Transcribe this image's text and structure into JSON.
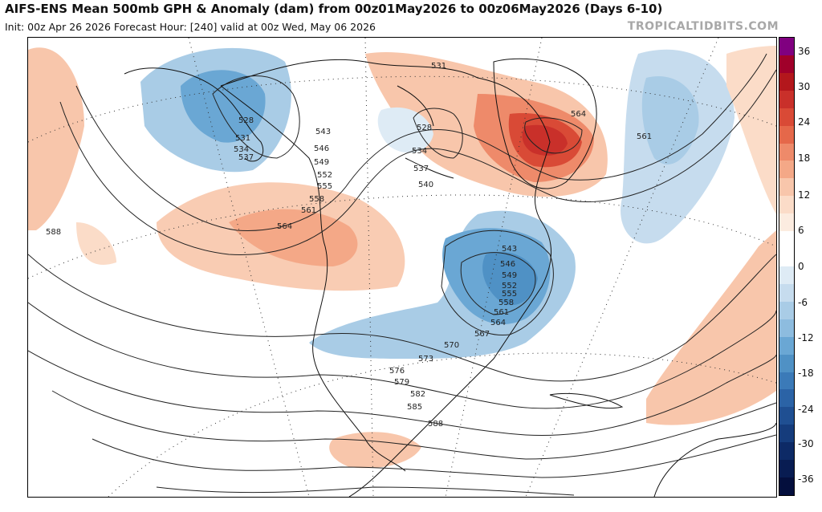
{
  "header": {
    "title": "AIFS-ENS Mean 500mb GPH & Anomaly (dam) from 00z01May2026 to 00z06May2026 (Days 6-10)",
    "subtitle": "Init: 00z Apr 26 2026   Forecast Hour: [240]   valid at 00z Wed, May 06 2026",
    "brand": "TROPICALTIDBITS.COM"
  },
  "map": {
    "contour_labels": [
      "528",
      "531",
      "534",
      "537",
      "543",
      "546",
      "549",
      "552",
      "555",
      "558",
      "561",
      "564",
      "588",
      "531",
      "528",
      "534",
      "537",
      "540",
      "564",
      "561",
      "543",
      "546",
      "549",
      "552",
      "555",
      "558",
      "561",
      "564",
      "567",
      "570",
      "573",
      "576",
      "579",
      "582",
      "585",
      "588"
    ]
  },
  "colorbar": {
    "ticks": [
      "36",
      "30",
      "24",
      "18",
      "12",
      "6",
      "0",
      "-6",
      "-12",
      "-18",
      "-24",
      "-30",
      "-36"
    ],
    "colors": [
      "#800080",
      "#a0002a",
      "#b3171c",
      "#c9302a",
      "#d94a36",
      "#e5684a",
      "#ee8a6a",
      "#f4a887",
      "#f8c6ab",
      "#fbdcc8",
      "#fcece0",
      "#ffffff",
      "#ffffff",
      "#deebf5",
      "#c6dcee",
      "#a9cce6",
      "#8dbcdf",
      "#6aa7d4",
      "#4f91c5",
      "#3b7ab8",
      "#2b63a6",
      "#1f4f92",
      "#153c7c",
      "#0d2a66",
      "#081c52",
      "#040f3d"
    ]
  }
}
